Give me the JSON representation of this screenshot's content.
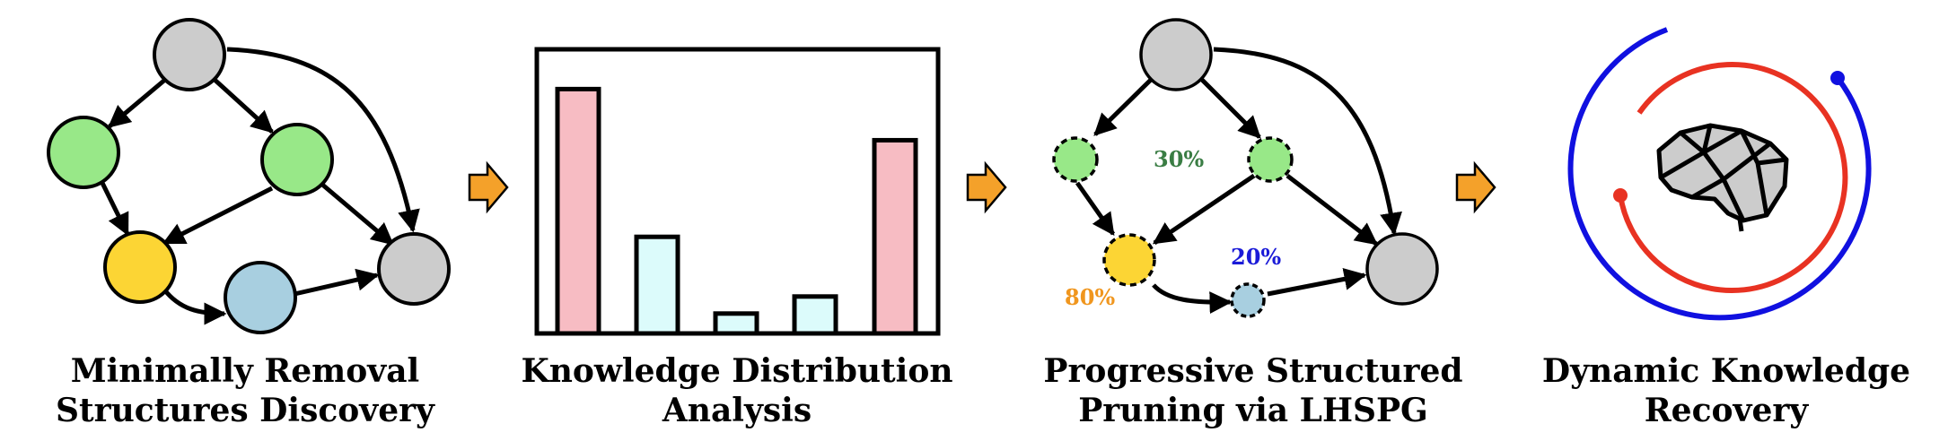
{
  "panels": [
    {
      "caption_line1": "Minimally Removal",
      "caption_line2": "Structures Discovery"
    },
    {
      "caption_line1": "Knowledge Distribution",
      "caption_line2": "Analysis"
    },
    {
      "caption_line1": "Progressive Structured",
      "caption_line2": "Pruning via LHSPG"
    },
    {
      "caption_line1": "Dynamic Knowledge",
      "caption_line2": "Recovery"
    }
  ],
  "pruning_labels": {
    "green": "30%",
    "blue": "20%",
    "yellow": "80%"
  },
  "chart_data": {
    "type": "bar",
    "values": [
      0.86,
      0.34,
      0.07,
      0.13,
      0.68
    ],
    "highlight": [
      true,
      false,
      false,
      false,
      true
    ],
    "title": "",
    "xlabel": "",
    "ylabel": ""
  },
  "colors": {
    "gray_node": "#cccccc",
    "green_node": "#98e888",
    "yellow_node": "#fcd534",
    "blue_node": "#a8cfe0",
    "pink_bar": "#f7bcc3",
    "cyan_bar": "#dcfbfb",
    "arrow_orange": "#f4a12a",
    "pct_green": "#3a7d44",
    "pct_blue": "#1b1bd8",
    "pct_orange": "#f0961e",
    "ring_blue": "#1010e0",
    "ring_red": "#e83222"
  }
}
